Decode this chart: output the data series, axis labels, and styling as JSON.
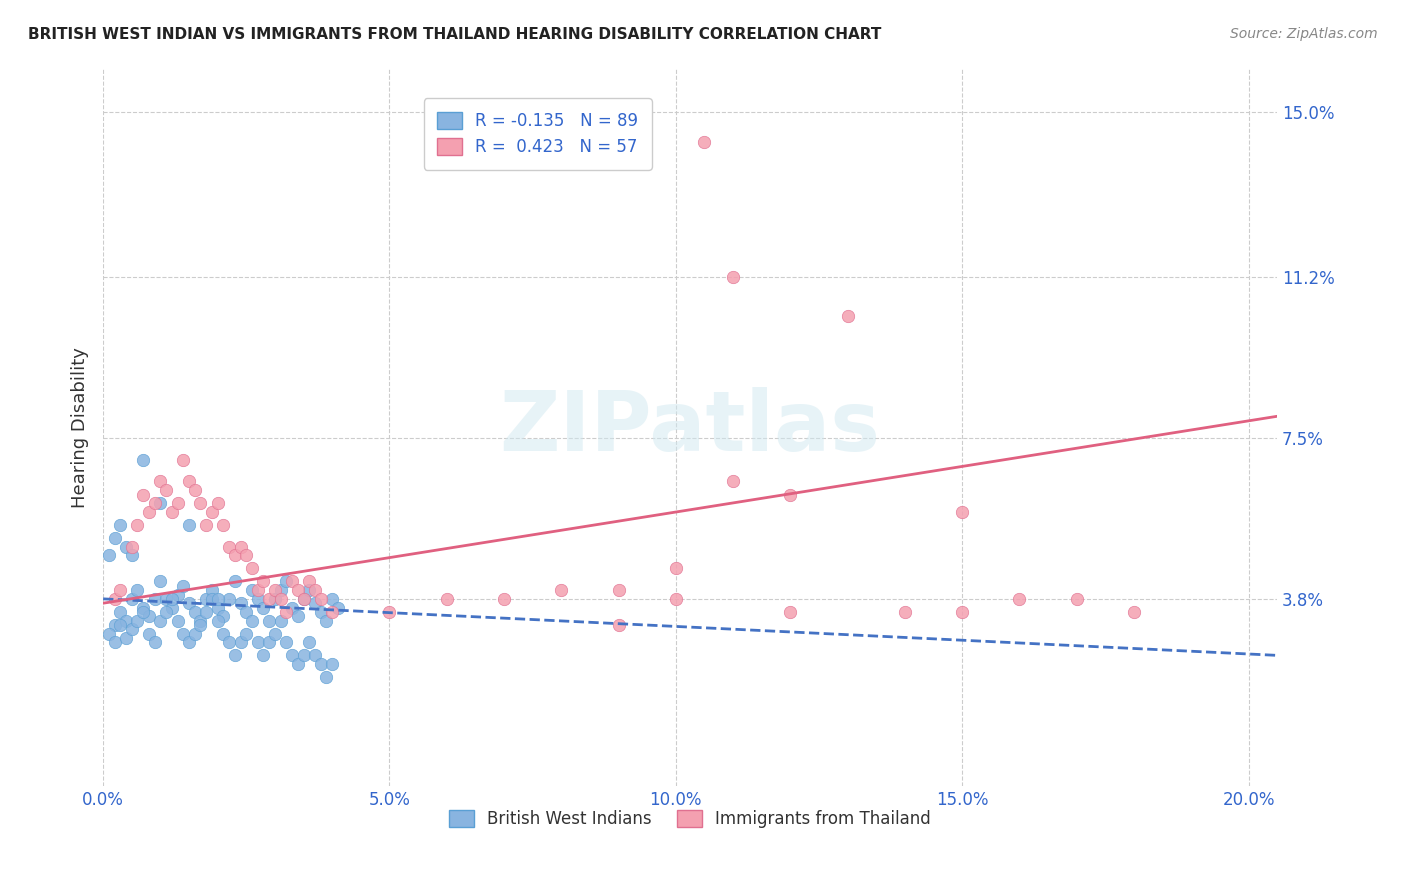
{
  "title": "BRITISH WEST INDIAN VS IMMIGRANTS FROM THAILAND HEARING DISABILITY CORRELATION CHART",
  "source": "Source: ZipAtlas.com",
  "xlabel_ticks": [
    "0.0%",
    "5.0%",
    "10.0%",
    "15.0%",
    "20.0%"
  ],
  "xlabel_tick_vals": [
    0.0,
    0.05,
    0.1,
    0.15,
    0.2
  ],
  "ylabel": "Hearing Disability",
  "ylabel_ticks": [
    "3.8%",
    "7.5%",
    "11.2%",
    "15.0%"
  ],
  "ylabel_tick_vals": [
    0.038,
    0.075,
    0.112,
    0.15
  ],
  "xlim": [
    0.0,
    0.205
  ],
  "ylim": [
    -0.005,
    0.16
  ],
  "color_blue": "#89b4e0",
  "color_pink": "#f4a0b0",
  "R_blue": -0.135,
  "N_blue": 89,
  "R_pink": 0.423,
  "N_pink": 57,
  "legend_label_blue": "British West Indians",
  "legend_label_pink": "Immigrants from Thailand",
  "watermark": "ZIPatlas",
  "background_color": "#ffffff",
  "grid_color": "#cccccc",
  "blue_scatter": [
    [
      0.002,
      0.032
    ],
    [
      0.003,
      0.035
    ],
    [
      0.004,
      0.033
    ],
    [
      0.005,
      0.038
    ],
    [
      0.006,
      0.04
    ],
    [
      0.007,
      0.036
    ],
    [
      0.008,
      0.034
    ],
    [
      0.009,
      0.038
    ],
    [
      0.01,
      0.042
    ],
    [
      0.011,
      0.038
    ],
    [
      0.012,
      0.036
    ],
    [
      0.013,
      0.039
    ],
    [
      0.014,
      0.041
    ],
    [
      0.015,
      0.037
    ],
    [
      0.016,
      0.035
    ],
    [
      0.017,
      0.033
    ],
    [
      0.018,
      0.038
    ],
    [
      0.019,
      0.04
    ],
    [
      0.02,
      0.036
    ],
    [
      0.021,
      0.034
    ],
    [
      0.022,
      0.038
    ],
    [
      0.023,
      0.042
    ],
    [
      0.024,
      0.037
    ],
    [
      0.025,
      0.035
    ],
    [
      0.026,
      0.04
    ],
    [
      0.027,
      0.038
    ],
    [
      0.028,
      0.036
    ],
    [
      0.029,
      0.033
    ],
    [
      0.03,
      0.038
    ],
    [
      0.031,
      0.04
    ],
    [
      0.032,
      0.042
    ],
    [
      0.033,
      0.036
    ],
    [
      0.034,
      0.034
    ],
    [
      0.035,
      0.038
    ],
    [
      0.036,
      0.04
    ],
    [
      0.037,
      0.037
    ],
    [
      0.038,
      0.035
    ],
    [
      0.039,
      0.033
    ],
    [
      0.04,
      0.038
    ],
    [
      0.041,
      0.036
    ],
    [
      0.001,
      0.03
    ],
    [
      0.002,
      0.028
    ],
    [
      0.003,
      0.032
    ],
    [
      0.004,
      0.029
    ],
    [
      0.005,
      0.031
    ],
    [
      0.006,
      0.033
    ],
    [
      0.007,
      0.035
    ],
    [
      0.008,
      0.03
    ],
    [
      0.009,
      0.028
    ],
    [
      0.01,
      0.033
    ],
    [
      0.011,
      0.035
    ],
    [
      0.012,
      0.038
    ],
    [
      0.013,
      0.033
    ],
    [
      0.014,
      0.03
    ],
    [
      0.015,
      0.028
    ],
    [
      0.016,
      0.03
    ],
    [
      0.017,
      0.032
    ],
    [
      0.018,
      0.035
    ],
    [
      0.019,
      0.038
    ],
    [
      0.02,
      0.033
    ],
    [
      0.021,
      0.03
    ],
    [
      0.022,
      0.028
    ],
    [
      0.023,
      0.025
    ],
    [
      0.024,
      0.028
    ],
    [
      0.025,
      0.03
    ],
    [
      0.026,
      0.033
    ],
    [
      0.027,
      0.028
    ],
    [
      0.028,
      0.025
    ],
    [
      0.029,
      0.028
    ],
    [
      0.03,
      0.03
    ],
    [
      0.031,
      0.033
    ],
    [
      0.032,
      0.028
    ],
    [
      0.033,
      0.025
    ],
    [
      0.034,
      0.023
    ],
    [
      0.035,
      0.025
    ],
    [
      0.036,
      0.028
    ],
    [
      0.037,
      0.025
    ],
    [
      0.038,
      0.023
    ],
    [
      0.039,
      0.02
    ],
    [
      0.04,
      0.023
    ],
    [
      0.001,
      0.048
    ],
    [
      0.002,
      0.052
    ],
    [
      0.003,
      0.055
    ],
    [
      0.004,
      0.05
    ],
    [
      0.005,
      0.048
    ],
    [
      0.007,
      0.07
    ],
    [
      0.01,
      0.06
    ],
    [
      0.015,
      0.055
    ],
    [
      0.02,
      0.038
    ]
  ],
  "pink_scatter": [
    [
      0.002,
      0.038
    ],
    [
      0.003,
      0.04
    ],
    [
      0.005,
      0.05
    ],
    [
      0.006,
      0.055
    ],
    [
      0.007,
      0.062
    ],
    [
      0.008,
      0.058
    ],
    [
      0.009,
      0.06
    ],
    [
      0.01,
      0.065
    ],
    [
      0.011,
      0.063
    ],
    [
      0.012,
      0.058
    ],
    [
      0.013,
      0.06
    ],
    [
      0.014,
      0.07
    ],
    [
      0.015,
      0.065
    ],
    [
      0.016,
      0.063
    ],
    [
      0.017,
      0.06
    ],
    [
      0.018,
      0.055
    ],
    [
      0.019,
      0.058
    ],
    [
      0.02,
      0.06
    ],
    [
      0.021,
      0.055
    ],
    [
      0.022,
      0.05
    ],
    [
      0.023,
      0.048
    ],
    [
      0.024,
      0.05
    ],
    [
      0.025,
      0.048
    ],
    [
      0.026,
      0.045
    ],
    [
      0.027,
      0.04
    ],
    [
      0.028,
      0.042
    ],
    [
      0.029,
      0.038
    ],
    [
      0.03,
      0.04
    ],
    [
      0.031,
      0.038
    ],
    [
      0.032,
      0.035
    ],
    [
      0.033,
      0.042
    ],
    [
      0.034,
      0.04
    ],
    [
      0.035,
      0.038
    ],
    [
      0.036,
      0.042
    ],
    [
      0.037,
      0.04
    ],
    [
      0.038,
      0.038
    ],
    [
      0.04,
      0.035
    ],
    [
      0.05,
      0.035
    ],
    [
      0.06,
      0.038
    ],
    [
      0.07,
      0.038
    ],
    [
      0.08,
      0.04
    ],
    [
      0.09,
      0.04
    ],
    [
      0.1,
      0.038
    ],
    [
      0.11,
      0.065
    ],
    [
      0.12,
      0.035
    ],
    [
      0.13,
      0.103
    ],
    [
      0.14,
      0.035
    ],
    [
      0.15,
      0.035
    ],
    [
      0.16,
      0.038
    ],
    [
      0.17,
      0.038
    ],
    [
      0.18,
      0.035
    ],
    [
      0.09,
      0.032
    ],
    [
      0.1,
      0.045
    ],
    [
      0.105,
      0.143
    ],
    [
      0.11,
      0.112
    ],
    [
      0.12,
      0.062
    ],
    [
      0.15,
      0.058
    ]
  ],
  "blue_line_x": [
    0.0,
    0.205
  ],
  "blue_line_y_start": 0.038,
  "blue_line_y_end": 0.025,
  "blue_line_style": "dashed",
  "pink_line_x": [
    0.0,
    0.205
  ],
  "pink_line_y_start": 0.037,
  "pink_line_y_end": 0.08
}
